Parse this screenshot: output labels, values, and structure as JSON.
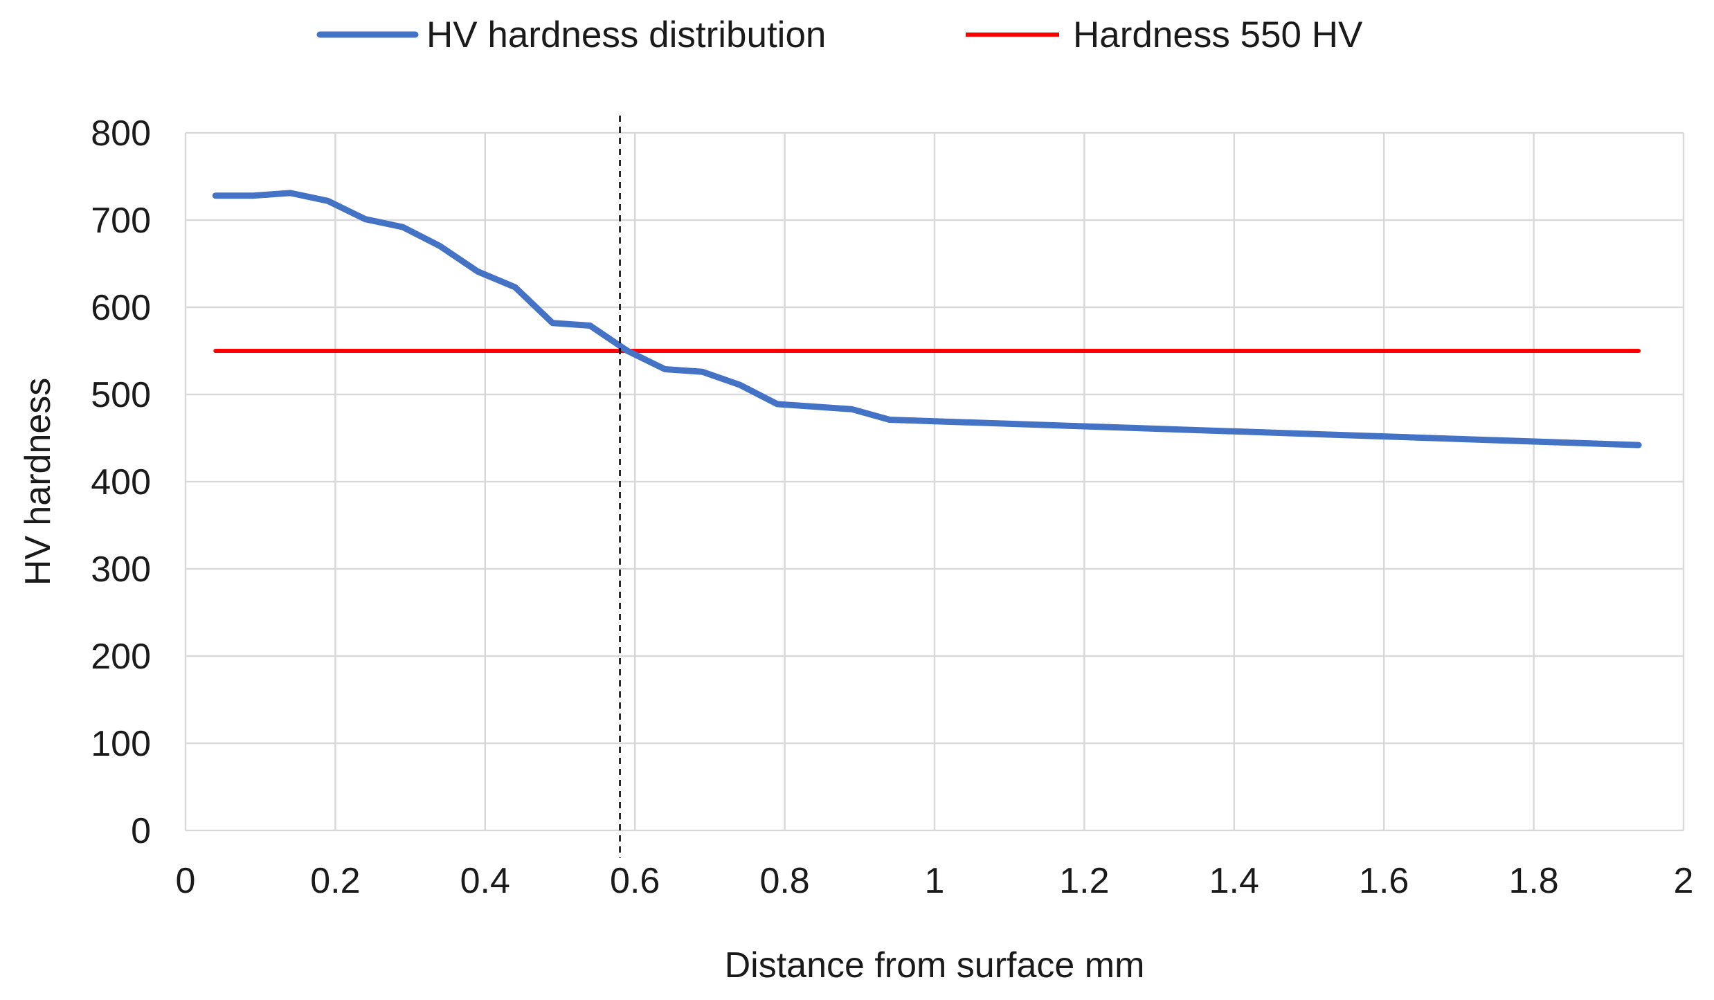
{
  "chart_data": {
    "type": "line",
    "title": "",
    "xlabel": "Distance from surface mm",
    "ylabel": "HV hardness",
    "xlim": [
      0,
      2
    ],
    "ylim": [
      0,
      800
    ],
    "x_ticks": [
      0,
      0.2,
      0.4,
      0.6,
      0.8,
      1,
      1.2,
      1.4,
      1.6,
      1.8,
      2
    ],
    "x_tick_labels": [
      "0",
      "0.2",
      "0.4",
      "0.6",
      "0.8",
      "1",
      "1.2",
      "1.4",
      "1.6",
      "1.8",
      "2"
    ],
    "y_ticks": [
      0,
      100,
      200,
      300,
      400,
      500,
      600,
      700,
      800
    ],
    "y_tick_labels": [
      "0",
      "100",
      "200",
      "300",
      "400",
      "500",
      "600",
      "700",
      "800"
    ],
    "grid": true,
    "legend_position": "top-center",
    "series": [
      {
        "name": "HV hardness distribution",
        "color": "#4472C4",
        "x": [
          0.04,
          0.09,
          0.14,
          0.19,
          0.24,
          0.29,
          0.34,
          0.39,
          0.44,
          0.49,
          0.54,
          0.59,
          0.64,
          0.69,
          0.74,
          0.79,
          0.84,
          0.89,
          0.94,
          1.94
        ],
        "values": [
          728,
          728,
          731,
          722,
          701,
          692,
          670,
          641,
          623,
          582,
          579,
          550,
          529,
          526,
          511,
          489,
          486,
          483,
          471,
          442
        ]
      },
      {
        "name": "Hardness 550 HV",
        "color": "#FF0000",
        "x": [
          0.04,
          1.94
        ],
        "values": [
          550,
          550
        ]
      }
    ],
    "annotations": [
      {
        "type": "vertical-dashed-line",
        "x": 0.58,
        "color": "#000000"
      }
    ]
  }
}
